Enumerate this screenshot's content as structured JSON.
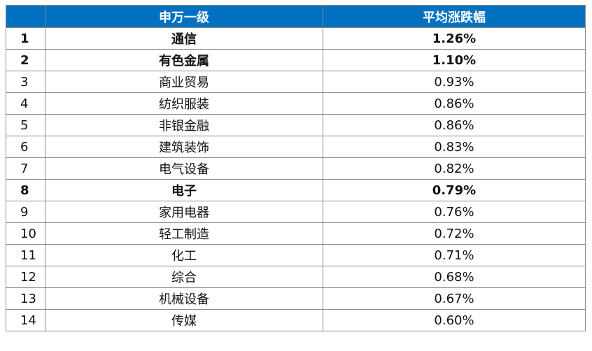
{
  "table": {
    "headers": [
      "",
      "申万一级",
      "平均涨跌幅"
    ],
    "rows": [
      {
        "rank": "1",
        "industry": "通信",
        "change": "1.26%",
        "bold": true
      },
      {
        "rank": "2",
        "industry": "有色金属",
        "change": "1.10%",
        "bold": true
      },
      {
        "rank": "3",
        "industry": "商业贸易",
        "change": "0.93%",
        "bold": false
      },
      {
        "rank": "4",
        "industry": "纺织服装",
        "change": "0.86%",
        "bold": false
      },
      {
        "rank": "5",
        "industry": "非银金融",
        "change": "0.86%",
        "bold": false
      },
      {
        "rank": "6",
        "industry": "建筑装饰",
        "change": "0.83%",
        "bold": false
      },
      {
        "rank": "7",
        "industry": "电气设备",
        "change": "0.82%",
        "bold": false
      },
      {
        "rank": "8",
        "industry": "电子",
        "change": "0.79%",
        "bold": true
      },
      {
        "rank": "9",
        "industry": "家用电器",
        "change": "0.76%",
        "bold": false
      },
      {
        "rank": "10",
        "industry": "轻工制造",
        "change": "0.72%",
        "bold": false
      },
      {
        "rank": "11",
        "industry": "化工",
        "change": "0.71%",
        "bold": false
      },
      {
        "rank": "12",
        "industry": "综合",
        "change": "0.68%",
        "bold": false
      },
      {
        "rank": "13",
        "industry": "机械设备",
        "change": "0.67%",
        "bold": false
      },
      {
        "rank": "14",
        "industry": "传媒",
        "change": "0.60%",
        "bold": false
      }
    ]
  },
  "colors": {
    "header_bg": "#0070c0",
    "header_text": "#ffffff",
    "border": "#8a8a8a"
  }
}
